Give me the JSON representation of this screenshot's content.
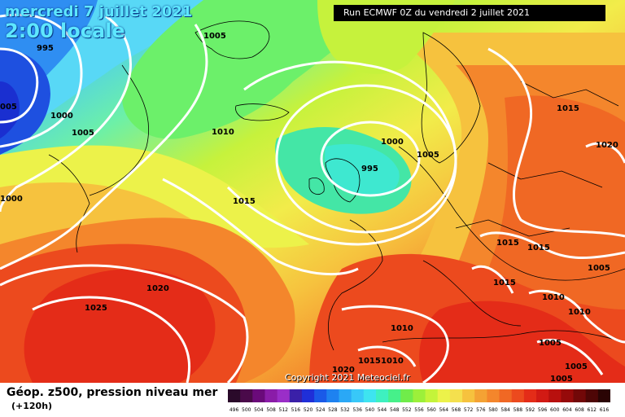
{
  "title": {
    "date": "mercredi 7 juillet 2021",
    "time": "2:00 locale"
  },
  "run_info": "Run ECMWF 0Z du vendredi 2 juillet 2021",
  "caption": {
    "main": "Géop. z500, pression niveau mer",
    "sub": "(+120h)"
  },
  "copyright": "Copyright 2021 Meteociel.fr",
  "isobar_labels": [
    "995",
    "1005",
    "005",
    "1000",
    "1005",
    "1010",
    "1000",
    "1015",
    "1000",
    "995",
    "1005",
    "1015",
    "1020",
    "1020",
    "1025",
    "1015",
    "1015",
    "1015",
    "1010",
    "1005",
    "1010",
    "1010",
    "1020",
    "1015",
    "1010",
    "1005",
    "1005",
    "1005"
  ],
  "legend": {
    "values": [
      "496",
      "500",
      "504",
      "508",
      "512",
      "516",
      "520",
      "524",
      "528",
      "532",
      "536",
      "540",
      "544",
      "548",
      "552",
      "556",
      "560",
      "564",
      "568",
      "572",
      "576",
      "580",
      "584",
      "588",
      "592",
      "596",
      "600",
      "604",
      "608",
      "612",
      "616"
    ],
    "colors": [
      "#2a0a2a",
      "#4a0a4a",
      "#6a0a7a",
      "#8a1ca8",
      "#9a2ec8",
      "#3a20a8",
      "#1f2fd8",
      "#1a5ae8",
      "#1e82f0",
      "#2aa8f6",
      "#38c8f8",
      "#3ee4f0",
      "#3ef0c0",
      "#46f08a",
      "#70ec4a",
      "#9cf03a",
      "#c4f43a",
      "#ecf24a",
      "#f4e04e",
      "#f6c23e",
      "#f4a234",
      "#f4862c",
      "#f06824",
      "#ec4a1e",
      "#e42c18",
      "#d21a14",
      "#b8100e",
      "#960a0a",
      "#720808",
      "#4e0606",
      "#2a0404"
    ]
  }
}
